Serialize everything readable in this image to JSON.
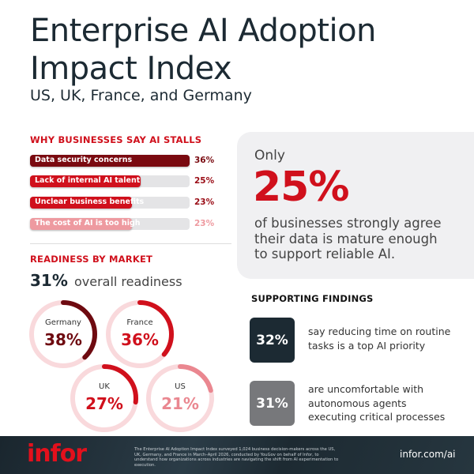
{
  "header": {
    "title_line1": "Enterprise AI Adoption",
    "title_line2": "Impact Index",
    "subtitle": "US, UK, France, and Germany"
  },
  "stalls": {
    "heading": "WHY BUSINESSES SAY AI STALLS",
    "max": 36,
    "items": [
      {
        "label": "Data security concerns",
        "value": 36,
        "display": "36%",
        "color": "#7a0a10",
        "pct_color": "#7a0a10"
      },
      {
        "label": "Lack of internal AI talent",
        "value": 25,
        "display": "25%",
        "color": "#d0101c",
        "pct_color": "#9a0d16"
      },
      {
        "label": "Unclear business benefits",
        "value": 23,
        "display": "23%",
        "color": "#d0101c",
        "pct_color": "#9a0d16"
      },
      {
        "label": "The cost of AI is too high",
        "value": 23,
        "display": "23%",
        "color": "#ee9aa0",
        "pct_color": "#ee9aa0"
      }
    ]
  },
  "readiness": {
    "heading": "READINESS BY MARKET",
    "overall_value": "31%",
    "overall_label": "overall readiness",
    "markets": [
      {
        "name": "Germany",
        "value": 38,
        "display": "38%",
        "color": "#6e0a10"
      },
      {
        "name": "France",
        "value": 36,
        "display": "36%",
        "color": "#d0101c"
      },
      {
        "name": "UK",
        "value": 27,
        "display": "27%",
        "color": "#d0101c"
      },
      {
        "name": "US",
        "value": 21,
        "display": "21%",
        "color": "#ea8790"
      }
    ]
  },
  "callout": {
    "prefix": "Only",
    "value": "25%",
    "text_line1": "of businesses strongly agree",
    "text_line2": "their data is mature enough",
    "text_line3": "to support reliable AI."
  },
  "findings": {
    "heading": "SUPPORTING FINDINGS",
    "items": [
      {
        "value": "32%",
        "line1": "say reducing time on routine",
        "line2": "tasks is a top AI priority",
        "color": "#1c2a33"
      },
      {
        "value": "31%",
        "line1": "are uncomfortable with",
        "line2": "autonomous agents",
        "line3": "executing critical processes",
        "color": "#77787b"
      }
    ]
  },
  "footer": {
    "logo": "infor",
    "disclaimer": "The Enterprise AI Adoption Impact Index surveyed 1,024 business decision-makers across the US, UK, Germany, and France in March–April 2026, conducted by YouGov on behalf of Infor, to understand how organizations across industries are navigating the shift from AI experimentation to execution.",
    "url": "infor.com/ai"
  }
}
